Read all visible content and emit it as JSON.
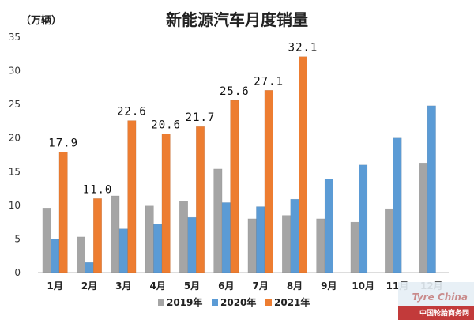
{
  "chart_data": {
    "type": "bar",
    "title": "新能源汽车月度销量",
    "ylabel": "（万辆）",
    "categories": [
      "1月",
      "2月",
      "3月",
      "4月",
      "5月",
      "6月",
      "7月",
      "8月",
      "9月",
      "10月",
      "11月",
      "12月"
    ],
    "series": [
      {
        "name": "2019年",
        "color": "#a5a5a5",
        "values": [
          9.6,
          5.3,
          11.4,
          9.9,
          10.6,
          15.4,
          8.0,
          8.5,
          8.0,
          7.5,
          9.5,
          16.3
        ]
      },
      {
        "name": "2020年",
        "color": "#5b9bd5",
        "values": [
          5.0,
          1.5,
          6.5,
          7.2,
          8.2,
          10.4,
          9.8,
          10.9,
          13.9,
          16.0,
          20.0,
          24.8
        ]
      },
      {
        "name": "2021年",
        "color": "#ed7d31",
        "values": [
          17.9,
          11.0,
          22.6,
          20.6,
          21.7,
          25.6,
          27.1,
          32.1,
          null,
          null,
          null,
          null
        ]
      }
    ],
    "data_labels": [
      "17.9",
      "11.0",
      "22.6",
      "20.6",
      "21.7",
      "25.6",
      "27.1",
      "32.1"
    ],
    "yticks": [
      "0",
      "5",
      "10",
      "15",
      "20",
      "25",
      "30",
      "35"
    ],
    "ylim": [
      0,
      35
    ],
    "grid": false,
    "legend": "bottom"
  },
  "watermark": {
    "logo": "Tyre China",
    "site": "中国轮胎商务网"
  }
}
